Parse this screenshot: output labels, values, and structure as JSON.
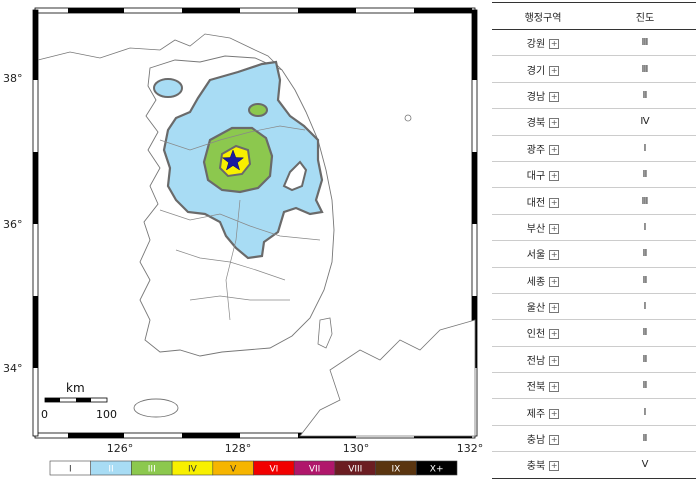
{
  "map": {
    "lon_ticks": [
      "126°",
      "128°",
      "130°",
      "132°"
    ],
    "lat_ticks": [
      "38°",
      "36°",
      "34°"
    ],
    "scale_bar": {
      "unit": "km",
      "start": "0",
      "end": "100"
    },
    "epicenter_icon": "star-icon",
    "colors": {
      "land": "#ffffff",
      "sea": "#ffffff",
      "zone_II": "#a8dcf4",
      "zone_III": "#8cc84e",
      "zone_IV": "#f8f000",
      "zone_border": "#6a6a6a",
      "star": "#1a1aa0"
    }
  },
  "legend": [
    {
      "label": "I",
      "color": "#ffffff",
      "text_color": "#333333"
    },
    {
      "label": "II",
      "color": "#a8dcf4",
      "text_color": "#ffffff"
    },
    {
      "label": "III",
      "color": "#8cc84e",
      "text_color": "#ffffff"
    },
    {
      "label": "IV",
      "color": "#f8f000",
      "text_color": "#333333"
    },
    {
      "label": "V",
      "color": "#f6b500",
      "text_color": "#333333"
    },
    {
      "label": "VI",
      "color": "#f20000",
      "text_color": "#ffffff"
    },
    {
      "label": "VII",
      "color": "#b0176b",
      "text_color": "#ffffff"
    },
    {
      "label": "VIII",
      "color": "#6b1d22",
      "text_color": "#ffffff"
    },
    {
      "label": "IX",
      "color": "#5a3510",
      "text_color": "#ffffff"
    },
    {
      "label": "X+",
      "color": "#000000",
      "text_color": "#ffffff"
    }
  ],
  "table": {
    "headers": [
      "행정구역",
      "진도"
    ],
    "rows": [
      {
        "region": "강원",
        "intensity": "Ⅲ"
      },
      {
        "region": "경기",
        "intensity": "Ⅲ"
      },
      {
        "region": "경남",
        "intensity": "Ⅱ"
      },
      {
        "region": "경북",
        "intensity": "Ⅳ"
      },
      {
        "region": "광주",
        "intensity": "Ⅰ"
      },
      {
        "region": "대구",
        "intensity": "Ⅱ"
      },
      {
        "region": "대전",
        "intensity": "Ⅲ"
      },
      {
        "region": "부산",
        "intensity": "Ⅰ"
      },
      {
        "region": "서울",
        "intensity": "Ⅱ"
      },
      {
        "region": "세종",
        "intensity": "Ⅱ"
      },
      {
        "region": "울산",
        "intensity": "Ⅰ"
      },
      {
        "region": "인천",
        "intensity": "Ⅱ"
      },
      {
        "region": "전남",
        "intensity": "Ⅱ"
      },
      {
        "region": "전북",
        "intensity": "Ⅱ"
      },
      {
        "region": "제주",
        "intensity": "Ⅰ"
      },
      {
        "region": "충남",
        "intensity": "Ⅱ"
      },
      {
        "region": "충북",
        "intensity": "Ⅴ"
      }
    ],
    "expand_symbol": "+"
  }
}
